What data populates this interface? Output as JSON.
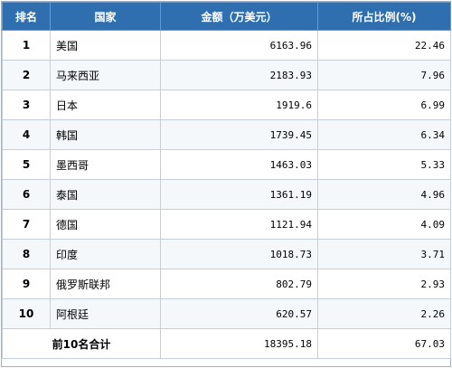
{
  "table": {
    "headers": {
      "rank": "排名",
      "country": "国家",
      "amount": "金额（万美元）",
      "share": "所占比例(%)"
    },
    "rows": [
      {
        "rank": "1",
        "country": "美国",
        "amount": "6163.96",
        "share": "22.46"
      },
      {
        "rank": "2",
        "country": "马来西亚",
        "amount": "2183.93",
        "share": "7.96"
      },
      {
        "rank": "3",
        "country": "日本",
        "amount": "1919.6",
        "share": "6.99"
      },
      {
        "rank": "4",
        "country": "韩国",
        "amount": "1739.45",
        "share": "6.34"
      },
      {
        "rank": "5",
        "country": "墨西哥",
        "amount": "1463.03",
        "share": "5.33"
      },
      {
        "rank": "6",
        "country": "泰国",
        "amount": "1361.19",
        "share": "4.96"
      },
      {
        "rank": "7",
        "country": "德国",
        "amount": "1121.94",
        "share": "4.09"
      },
      {
        "rank": "8",
        "country": "印度",
        "amount": "1018.73",
        "share": "3.71"
      },
      {
        "rank": "9",
        "country": "俄罗斯联邦",
        "amount": "802.79",
        "share": "2.93"
      },
      {
        "rank": "10",
        "country": "阿根廷",
        "amount": "620.57",
        "share": "2.26"
      }
    ],
    "total": {
      "label": "前10名合计",
      "amount": "18395.18",
      "share": "67.03"
    }
  },
  "colors": {
    "header_bg": "#2f6fb0",
    "header_text": "#ffffff",
    "border": "#c3cfdb"
  }
}
